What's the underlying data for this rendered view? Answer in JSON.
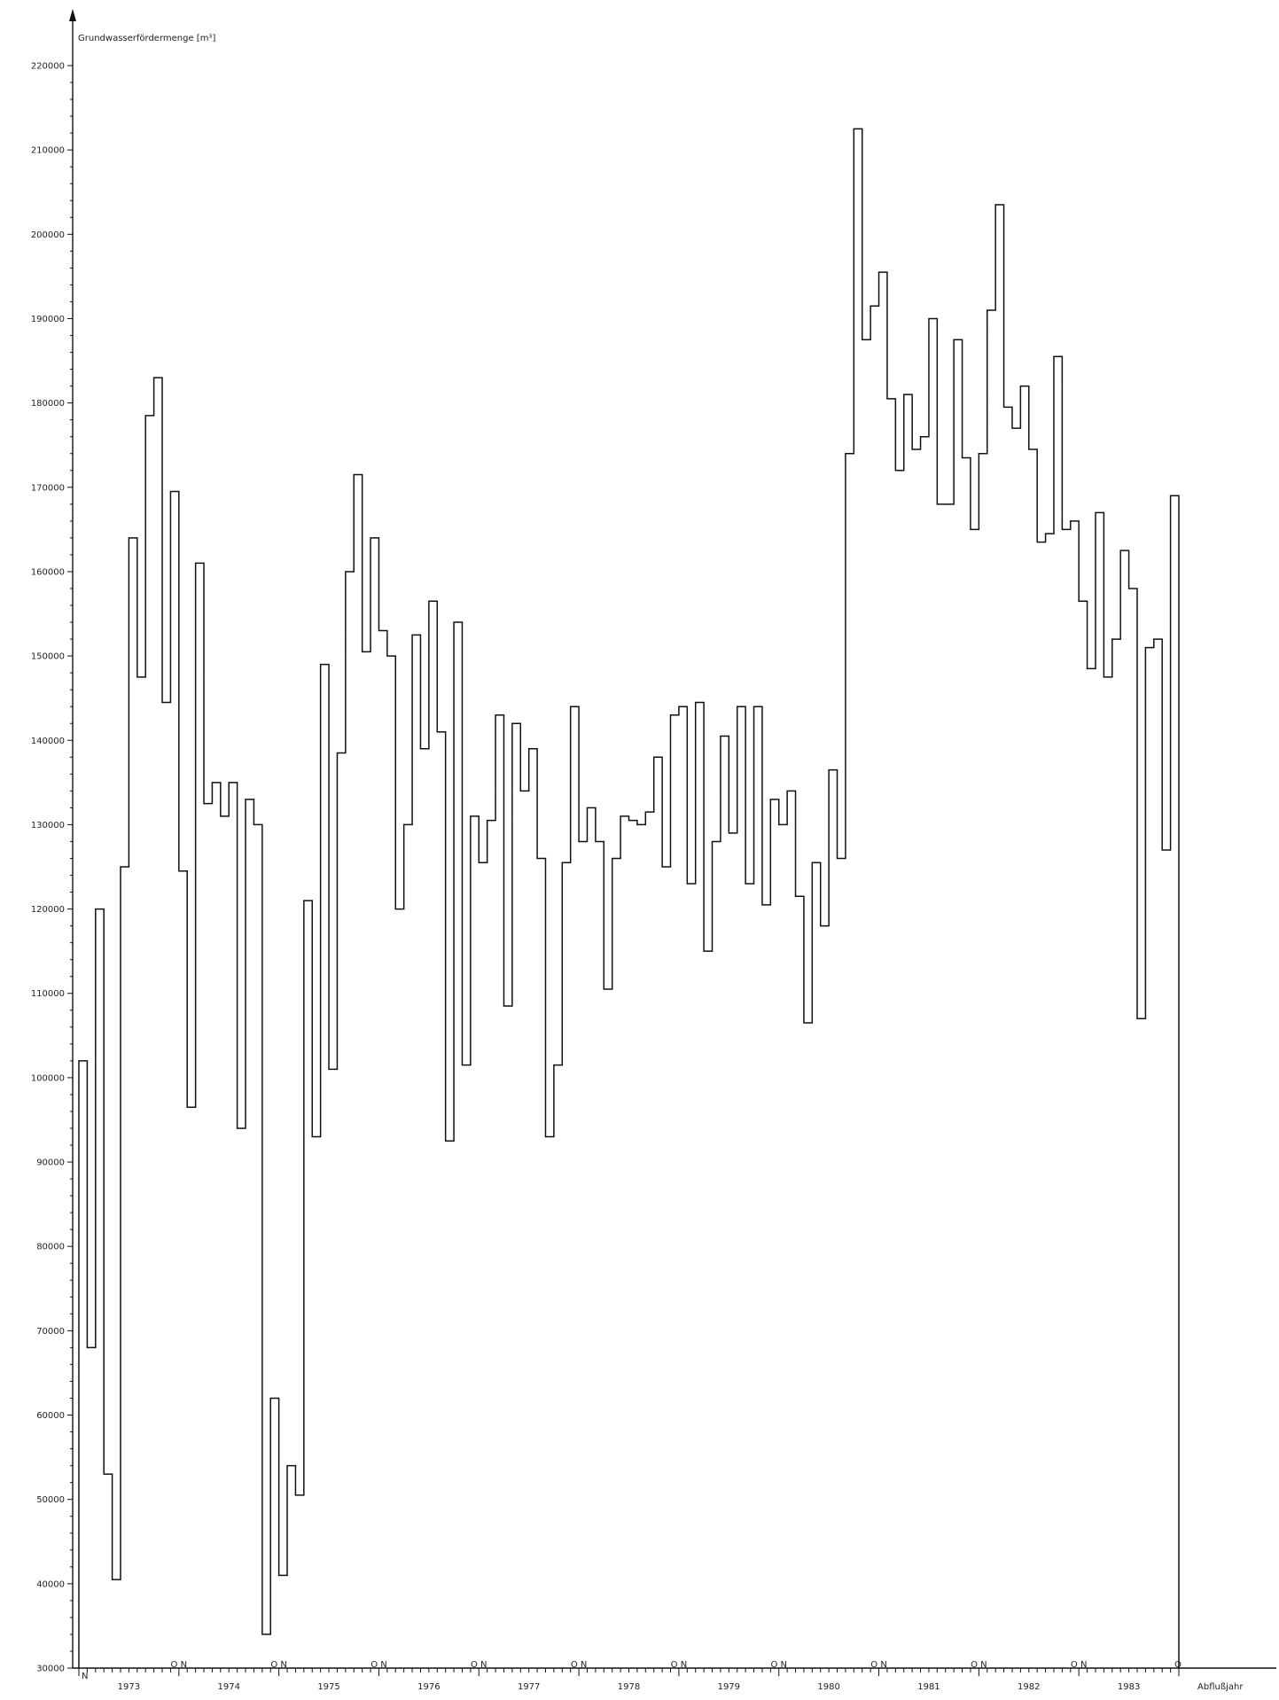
{
  "chart_data": {
    "type": "line",
    "step": true,
    "ylabel": "Grundwasserfördermenge [m³]",
    "xlabel": "Abflußjahr",
    "ylim": [
      30000,
      220000
    ],
    "ytick_step": 10000,
    "ytick_labels": [
      "30000",
      "40000",
      "50000",
      "60000",
      "70000",
      "80000",
      "90000",
      "100000",
      "110000",
      "120000",
      "130000",
      "140000",
      "150000",
      "160000",
      "170000",
      "180000",
      "190000",
      "200000",
      "210000",
      "220000"
    ],
    "years": [
      "1973",
      "1974",
      "1975",
      "1976",
      "1977",
      "1978",
      "1979",
      "1980",
      "1981",
      "1982",
      "1983"
    ],
    "year_start_label": "N",
    "year_end_label": "O",
    "year_boundary_label": "O N",
    "x_unit": "month",
    "series": [
      {
        "values": [
          102000,
          68000,
          120000,
          53000,
          40500,
          125000,
          164000,
          147500,
          178500,
          183000,
          144500,
          169500,
          124500,
          96500,
          161000,
          132500,
          135000,
          131000,
          135000,
          94000,
          133000,
          130000,
          34000,
          62000,
          41000,
          54000,
          50500,
          121000,
          93000,
          149000,
          101000,
          138500,
          160000,
          171500,
          150500,
          164000,
          153000,
          150000,
          120000,
          130000,
          152500,
          139000,
          156500,
          141000,
          92500,
          154000,
          101500,
          131000,
          125500,
          130500,
          143000,
          108500,
          142000,
          134000,
          139000,
          126000,
          93000,
          101500,
          125500,
          144000,
          128000,
          132000,
          128000,
          110500,
          126000,
          131000,
          130500,
          130000,
          131500,
          138000,
          125000,
          143000,
          144000,
          123000,
          144500,
          115000,
          128000,
          140500,
          129000,
          144000,
          123000,
          144000,
          120500,
          133000,
          130000,
          134000,
          121500,
          106500,
          125500,
          118000,
          136500,
          126000,
          174000,
          212500,
          187500,
          191500,
          195500,
          180500,
          172000,
          181000,
          174500,
          176000,
          190000,
          168000,
          168000,
          187500,
          173500,
          165000,
          174000,
          191000,
          203500,
          179500,
          177000,
          182000,
          174500,
          163500,
          164500,
          185500,
          165000,
          166000,
          156500,
          148500,
          167000,
          147500,
          152000,
          162500,
          158000,
          107000,
          151000,
          152000,
          127000,
          169000
        ]
      }
    ]
  }
}
